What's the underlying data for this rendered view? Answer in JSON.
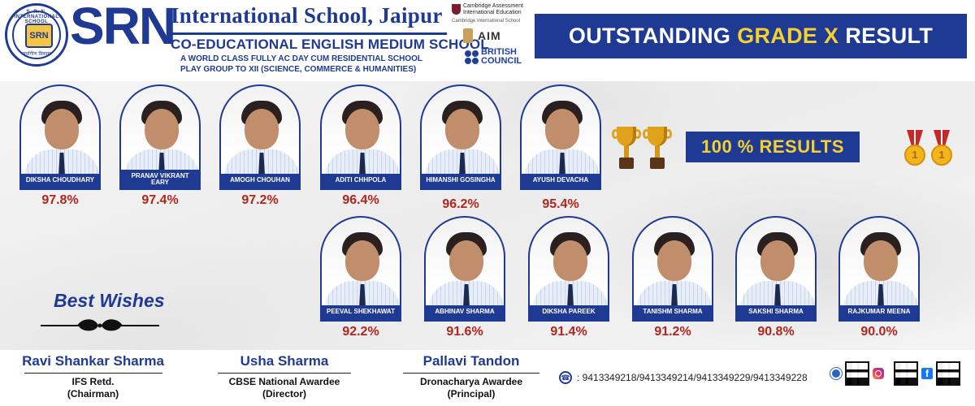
{
  "header": {
    "logo": {
      "seal_top": "S. R. N. INTERNATIONAL SCHOOL",
      "seal_core": "SRN",
      "seal_bottom": "सर्वागीण विकास"
    },
    "srn": "SRN",
    "school_name": "International School, Jaipur",
    "subtitle": "CO-EDUCATIONAL ENGLISH MEDIUM SCHOOL",
    "tagline_1": "A WORLD CLASS FULLY AC DAY CUM RESIDENTIAL SCHOOL",
    "tagline_2": "PLAY GROUP TO XII (SCIENCE, COMMERCE & HUMANITIES)",
    "affiliations": {
      "cambridge_1": "Cambridge Assessment",
      "cambridge_2": "International Education",
      "cambridge_3": "Cambridge International School",
      "aim": "AIM",
      "british_1": "BRITISH",
      "british_2": "COUNCIL"
    },
    "banner_pre": "OUTSTANDING",
    "banner_highlight": "GRADE X",
    "banner_post": "RESULT"
  },
  "students_row1": [
    {
      "name": "DIKSHA CHOUDHARY",
      "score": "97.8%"
    },
    {
      "name": "PRANAV VIKRANT EARY",
      "score": "97.4%"
    },
    {
      "name": "AMOGH CHOUHAN",
      "score": "97.2%"
    },
    {
      "name": "ADITI CHHPOLA",
      "score": "96.4%"
    },
    {
      "name": "HIMANSHI GOSINGHA",
      "score": "96.2%"
    },
    {
      "name": "AYUSH DEVACHA",
      "score": "95.4%"
    }
  ],
  "students_row2": [
    {
      "name": "PEEVAL SHEKHAWAT",
      "score": "92.2%"
    },
    {
      "name": "ABHINAV SHARMA",
      "score": "91.6%"
    },
    {
      "name": "DIKSHA PAREEK",
      "score": "91.4%"
    },
    {
      "name": "TANISHM SHARMA",
      "score": "91.2%"
    },
    {
      "name": "SAKSHI SHARMA",
      "score": "90.8%"
    },
    {
      "name": "RAJKUMAR MEENA",
      "score": "90.0%"
    }
  ],
  "results_badge": "100 % RESULTS",
  "medal_glyph": "1",
  "best_wishes": "Best Wishes",
  "footer": {
    "people": [
      {
        "name": "Ravi Shankar Sharma",
        "title_1": "IFS Retd.",
        "title_2": "(Chairman)"
      },
      {
        "name": "Usha Sharma",
        "title_1": "CBSE National Awardee",
        "title_2": "(Director)"
      },
      {
        "name": "Pallavi Tandon",
        "title_1": "Dronacharya Awardee",
        "title_2": "(Principal)"
      }
    ],
    "phone_icon": "phone-icon",
    "phones": ": 9413349218/9413349214/9413349229/9413349228",
    "fb_glyph": "f"
  },
  "colors": {
    "brand_blue": "#1f3a93",
    "highlight_yellow": "#f5d130",
    "score_red": "#b0261e"
  }
}
